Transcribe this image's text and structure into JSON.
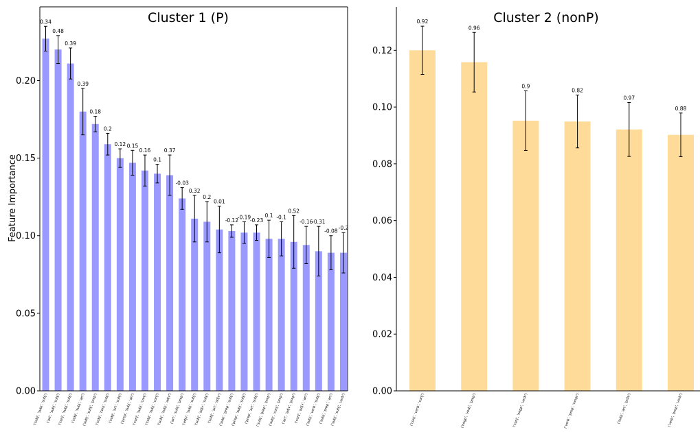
{
  "chart_data": [
    {
      "type": "bar",
      "title": "Cluster 1 (P)",
      "xlabel": "",
      "ylabel": "Feature Importance",
      "ylim": [
        0,
        0.2475
      ],
      "yticks": [
        "0.00",
        "0.05",
        "0.10",
        "0.15",
        "0.20"
      ],
      "bar_color": "#9999ff",
      "categories": [
        "('subj', 'subj', 'subj')",
        "('art', 'subj', 'subj')",
        "('conj', 'subj', 'subj')",
        "('subj', 'subj', 'art')",
        "('subj', 'subj', 'prep')",
        "('subj', 'conj', 'subj')",
        "('subj', 'art', 'subj')",
        "('prep', 'subj', 'art')",
        "('conj', 'subj', 'conj')",
        "('subj', 'subj', 'conj')",
        "('subj', 'subj', 'adjv')",
        "('art', 'subj', 'prep')",
        "('adjv', 'subj', 'subj')",
        "('subj', 'adjv', 'subj')",
        "('subj', 'art', 'adjv')",
        "('subj', 'prep', 'subj')",
        "('prep', 'subj', 'subj')",
        "('prep', 'art', 'subj')",
        "('subj', 'prep', 'prep')",
        "('subj', 'conj', 'prep')",
        "('art', 'adjv', 'prep')",
        "('conj', 'adjv', 'art')",
        "('subj', 'verb', 'subj')",
        "('subj', 'prep', 'art')",
        "('subj', 'subj', 'verb')"
      ],
      "values": [
        0.227,
        0.22,
        0.211,
        0.18,
        0.172,
        0.159,
        0.15,
        0.147,
        0.142,
        0.14,
        0.139,
        0.124,
        0.111,
        0.109,
        0.104,
        0.103,
        0.102,
        0.102,
        0.098,
        0.098,
        0.096,
        0.094,
        0.09,
        0.089,
        0.089
      ],
      "errors": [
        0.008,
        0.009,
        0.01,
        0.015,
        0.005,
        0.007,
        0.006,
        0.008,
        0.01,
        0.006,
        0.013,
        0.007,
        0.015,
        0.013,
        0.015,
        0.004,
        0.007,
        0.005,
        0.012,
        0.011,
        0.017,
        0.012,
        0.016,
        0.011,
        0.013
      ],
      "data_labels": [
        "0.34",
        "0.48",
        "0.39",
        "0.39",
        "0.18",
        "0.2",
        "0.12",
        "0.15",
        "0.16",
        "0.1",
        "0.37",
        "-0.03",
        "0.32",
        "0.2",
        "0.01",
        "-0.12",
        "-0.19",
        "-0.23",
        "0.1",
        "-0.1",
        "0.52",
        "-0.16",
        "-0.31",
        "-0.08",
        "-0.2"
      ]
    },
    {
      "type": "bar",
      "title": "Cluster 2 (nonP)",
      "xlabel": "",
      "ylabel": "",
      "ylim": [
        0,
        0.1353
      ],
      "yticks": [
        "0.00",
        "0.02",
        "0.04",
        "0.06",
        "0.08",
        "0.10",
        "0.12"
      ],
      "bar_color": "#ffdb99",
      "categories": [
        "('conj', 'verb', 'conj')",
        "('negp', 'verb', 'prep')",
        "('conj', 'negp', 'verb')",
        "('verb', 'prep', 'nmpr')",
        "('subj', 'art', 'prde')",
        "('verb', 'prep', 'verb')"
      ],
      "values": [
        0.12,
        0.1158,
        0.0952,
        0.0949,
        0.0921,
        0.0902
      ],
      "errors": [
        0.0085,
        0.0105,
        0.0105,
        0.0093,
        0.0095,
        0.0077
      ],
      "data_labels": [
        "0.92",
        "0.96",
        "0.9",
        "0.82",
        "0.97",
        "0.88"
      ]
    }
  ]
}
